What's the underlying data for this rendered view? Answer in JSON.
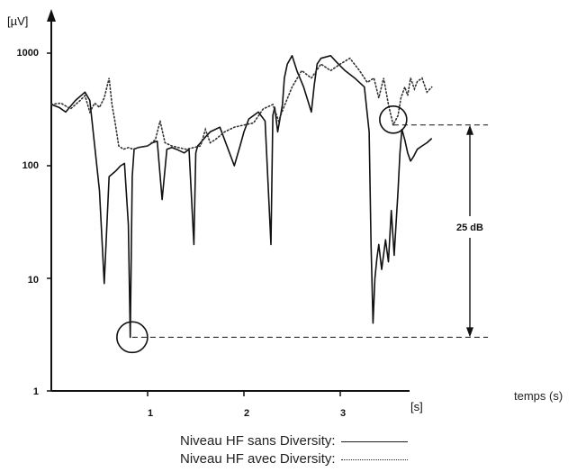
{
  "chart_data": {
    "type": "line",
    "yscale": "log",
    "ylim": [
      1,
      1000
    ],
    "xlim": [
      0,
      4.1
    ],
    "y_unit": "[µV]",
    "x_unit": "[s]",
    "xlabel": "temps (s)",
    "y_ticks": [
      "1",
      "10",
      "100",
      "1000"
    ],
    "x_ticks": [
      "1",
      "2",
      "3"
    ],
    "annotation": "25 dB",
    "legend": [
      {
        "label": "Niveau HF sans Diversity:",
        "style": "solid"
      },
      {
        "label": "Niveau HF avec Diversity:",
        "style": "dotted"
      }
    ],
    "series": [
      {
        "style": "solid",
        "x": [
          0,
          0.08,
          0.15,
          0.25,
          0.35,
          0.4,
          0.45,
          0.5,
          0.55,
          0.6,
          0.67,
          0.72,
          0.76,
          0.8,
          0.82,
          0.84,
          0.86,
          0.9,
          1.0,
          1.05,
          1.1,
          1.15,
          1.2,
          1.25,
          1.3,
          1.38,
          1.43,
          1.48,
          1.5,
          1.52,
          1.55,
          1.6,
          1.65,
          1.75,
          1.85,
          1.9,
          1.96,
          2.0,
          2.05,
          2.15,
          2.22,
          2.28,
          2.3,
          2.32,
          2.35,
          2.4,
          2.42,
          2.45,
          2.5,
          2.55,
          2.62,
          2.7,
          2.73,
          2.76,
          2.8,
          2.9,
          2.98,
          3.05,
          3.15,
          3.25,
          3.3,
          3.32,
          3.34,
          3.36,
          3.38,
          3.4,
          3.43,
          3.47,
          3.5,
          3.53,
          3.56,
          3.6,
          3.62,
          3.64,
          3.67,
          3.7,
          3.73,
          3.76,
          3.78,
          3.8,
          3.85,
          3.9,
          3.95
        ],
        "values": [
          350,
          330,
          300,
          380,
          450,
          380,
          150,
          60,
          9,
          80,
          90,
          100,
          105,
          30,
          3,
          80,
          140,
          145,
          150,
          160,
          165,
          50,
          140,
          145,
          140,
          130,
          140,
          20,
          130,
          150,
          160,
          180,
          200,
          220,
          130,
          100,
          150,
          200,
          260,
          300,
          250,
          20,
          280,
          330,
          200,
          350,
          600,
          800,
          950,
          700,
          500,
          300,
          520,
          800,
          900,
          950,
          800,
          700,
          600,
          500,
          200,
          20,
          4,
          10,
          15,
          20,
          12,
          22,
          14,
          40,
          16,
          60,
          130,
          210,
          170,
          130,
          110,
          120,
          130,
          140,
          150,
          160,
          175
        ]
      },
      {
        "style": "dotted",
        "x": [
          0,
          0.1,
          0.2,
          0.3,
          0.35,
          0.4,
          0.45,
          0.5,
          0.55,
          0.6,
          0.63,
          0.66,
          0.7,
          0.75,
          0.8,
          0.85,
          0.9,
          1.0,
          1.08,
          1.13,
          1.18,
          1.25,
          1.32,
          1.4,
          1.48,
          1.55,
          1.6,
          1.65,
          1.7,
          1.8,
          1.9,
          2.0,
          2.1,
          2.2,
          2.3,
          2.36,
          2.42,
          2.5,
          2.6,
          2.7,
          2.8,
          2.9,
          3.0,
          3.1,
          3.2,
          3.28,
          3.35,
          3.4,
          3.45,
          3.5,
          3.55,
          3.6,
          3.63,
          3.67,
          3.7,
          3.73,
          3.77,
          3.8,
          3.85,
          3.9,
          3.95
        ],
        "values": [
          350,
          360,
          320,
          380,
          420,
          300,
          360,
          330,
          400,
          600,
          350,
          250,
          150,
          140,
          145,
          140,
          145,
          150,
          170,
          250,
          160,
          150,
          145,
          140,
          145,
          150,
          210,
          160,
          170,
          200,
          220,
          230,
          240,
          320,
          350,
          250,
          340,
          500,
          700,
          600,
          800,
          700,
          800,
          900,
          700,
          550,
          600,
          400,
          600,
          350,
          230,
          280,
          400,
          500,
          420,
          600,
          480,
          560,
          600,
          450,
          500
        ]
      }
    ]
  }
}
